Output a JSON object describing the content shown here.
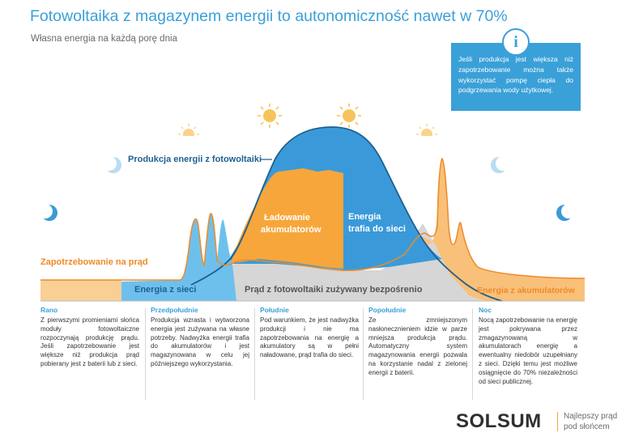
{
  "header": {
    "title": "Fotowoltaika z magazynem energii to autonomiczność nawet w 70%",
    "subtitle": "Własna energia na każdą porę dnia"
  },
  "info": {
    "icon": "info-icon",
    "glyph": "i",
    "text": "Jeśli produkcja jest większa niż zapotrzebowanie można także wykorzystać pompę ciepła do podgrzewania wody użytkowej."
  },
  "diagram_labels": {
    "production": "Produkcja energii z fotowoltaiki",
    "charging": [
      "Ładowanie",
      "akumulatorów"
    ],
    "grid_feed": [
      "Energia",
      "trafia do sieci"
    ],
    "demand": "Zapotrzebowanie na prąd",
    "from_grid": "Energia z sieci",
    "direct_use": "Prąd z fotowoltaiki zużywany bezpośrenio",
    "from_battery": "Energia z akumulatorów"
  },
  "colors": {
    "title_blue": "#3aa0d8",
    "production_blue": "#3a9ad9",
    "light_blue": "#6ec0ec",
    "orange": "#f7a63b",
    "demand_line": "#ee8a26",
    "light_orange": "#f9cf95",
    "gray": "#d6d6d6"
  },
  "columns": [
    {
      "heading": "Rano",
      "text": "Z pierwszymi promieniami słońca moduły fotowoltaiczne rozpoczynają produkcję prądu. Jeśli zapotrzebowanie jest większe niż produkcja prąd pobierany jest z baterii lub z sieci."
    },
    {
      "heading": "Przedpołudnie",
      "text": "Produkcja wzrasta i wytworzona energia jest zużywana na własne potrzeby. Nadwyżka energii trafia do akumulatorów i jest magazynowana w celu jej późniejszego wykorzystania."
    },
    {
      "heading": "Południe",
      "text": "Pod warunkiem, że jest nadwyżka produkcji i nie ma zapotrzebowania na energię a akumulatory są w pełni naładowane, prąd trafia do sieci."
    },
    {
      "heading": "Popołudnie",
      "text": "Ze zmniejszonym nasłonecznieniem idzie w parze mniejsza produkcja prądu. Automatyczny system magazynowania energii pozwala na korzystanie nadal z zielonej energii z baterii."
    },
    {
      "heading": "Noc",
      "text": "Nocą zapotrzebowanie na energię jest pokrywana przez zmagazynowaną w akumulatorach energię a ewentualny niedobór uzupełniany z sieci. Dzięki temu jest możliwe osiągnięcie do 70% niezależności od sieci publicznej."
    }
  ],
  "brand": {
    "logo": "SOLSUM",
    "tagline": [
      "Najlepszy prąd",
      "pod słońcem"
    ]
  }
}
